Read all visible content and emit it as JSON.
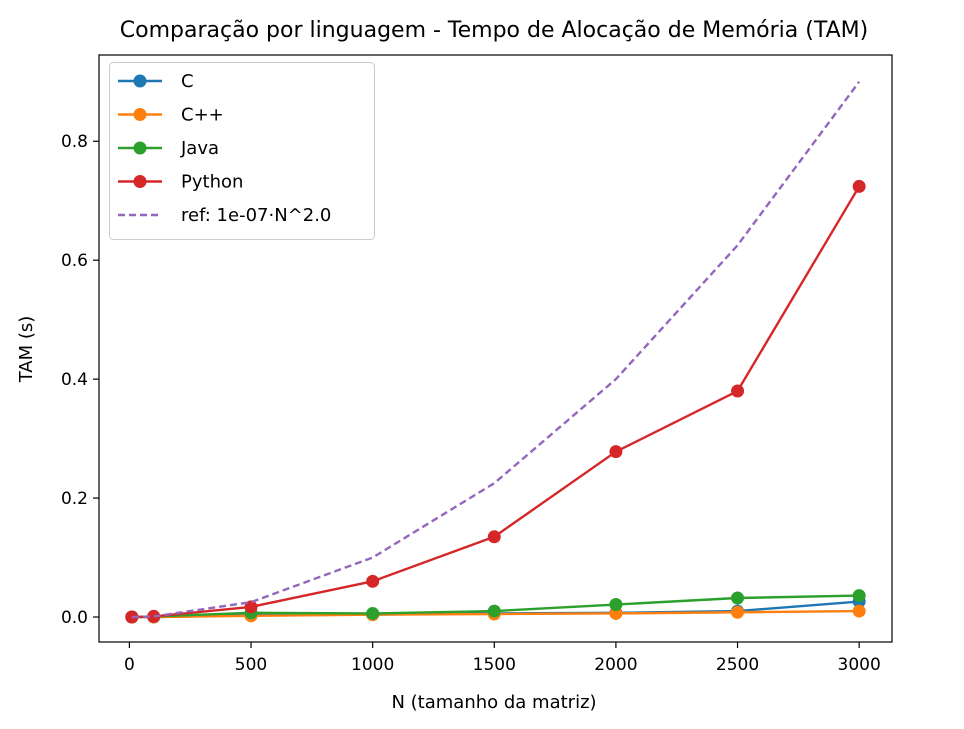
{
  "chart_data": {
    "type": "line",
    "title": "Comparação por linguagem - Tempo de Alocação de Memória (TAM)",
    "xlabel": "N (tamanho da matriz)",
    "ylabel": "TAM (s)",
    "x": [
      10,
      100,
      500,
      1000,
      1500,
      2000,
      2500,
      3000
    ],
    "xlim": [
      -125,
      3135
    ],
    "ylim": [
      -0.042,
      0.945
    ],
    "xticks": [
      0,
      500,
      1000,
      1500,
      2000,
      2500,
      3000
    ],
    "xtick_labels": [
      "0",
      "500",
      "1000",
      "1500",
      "2000",
      "2500",
      "3000"
    ],
    "yticks": [
      0.0,
      0.2,
      0.4,
      0.6,
      0.8
    ],
    "ytick_labels": [
      "0.0",
      "0.2",
      "0.4",
      "0.6",
      "0.8"
    ],
    "legend_position": "top-left",
    "series": [
      {
        "name": "C",
        "label": "C",
        "color": "#1f77b4",
        "style": "solid",
        "markers": true,
        "values": [
          0.0,
          0.0,
          0.003,
          0.004,
          0.006,
          0.007,
          0.01,
          0.026
        ]
      },
      {
        "name": "C++",
        "label": "C++",
        "color": "#ff7f0e",
        "style": "solid",
        "markers": true,
        "values": [
          0.0,
          0.0,
          0.002,
          0.004,
          0.005,
          0.006,
          0.008,
          0.01
        ]
      },
      {
        "name": "Java",
        "label": "Java",
        "color": "#2ca02c",
        "style": "solid",
        "markers": true,
        "values": [
          0.0,
          0.001,
          0.007,
          0.006,
          0.01,
          0.021,
          0.032,
          0.036
        ]
      },
      {
        "name": "Python",
        "label": "Python",
        "color": "#d62728",
        "style": "solid",
        "markers": true,
        "values": [
          0.0,
          0.001,
          0.017,
          0.06,
          0.135,
          0.278,
          0.38,
          0.724
        ]
      },
      {
        "name": "ref",
        "label": "ref: 1e-07·N^2.0",
        "color": "#9467bd",
        "style": "dashed",
        "markers": false,
        "values": [
          1e-05,
          0.001,
          0.025,
          0.1,
          0.225,
          0.4,
          0.625,
          0.9
        ]
      }
    ]
  }
}
